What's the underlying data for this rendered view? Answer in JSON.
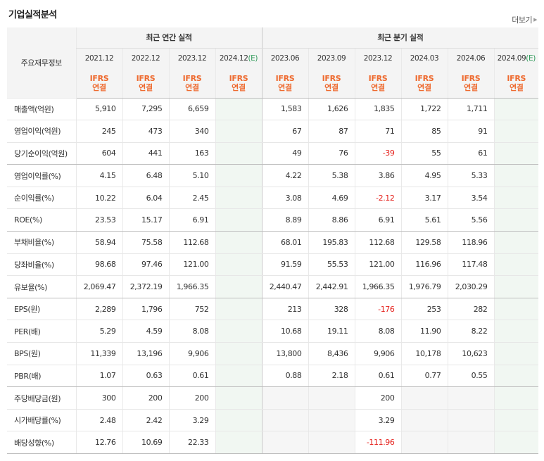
{
  "section_title": "기업실적분석",
  "more_label": "더보기",
  "more_icon": "triangle-right-icon",
  "colors": {
    "ifrs": "#ee6a2f",
    "negative": "#e5201b",
    "estimate": "#2f9a59",
    "estimate_bg": "#f1f7f2",
    "header_bg": "#f4f4f4"
  },
  "header": {
    "row_label": "주요재무정보",
    "annual_group": "최근 연간 실적",
    "quarter_group": "최근 분기 실적",
    "annual_periods": [
      {
        "period": "2021.12",
        "est": ""
      },
      {
        "period": "2022.12",
        "est": ""
      },
      {
        "period": "2023.12",
        "est": ""
      },
      {
        "period": "2024.12",
        "est": "(E)"
      }
    ],
    "quarter_periods": [
      {
        "period": "2023.06",
        "est": ""
      },
      {
        "period": "2023.09",
        "est": ""
      },
      {
        "period": "2023.12",
        "est": ""
      },
      {
        "period": "2024.03",
        "est": ""
      },
      {
        "period": "2024.06",
        "est": ""
      },
      {
        "period": "2024.09",
        "est": "(E)"
      }
    ],
    "ifrs_line1": "IFRS",
    "ifrs_line2": "연결"
  },
  "rows": [
    {
      "label": "매출액(억원)",
      "values": [
        "5,910",
        "7,295",
        "6,659",
        "",
        "1,583",
        "1,626",
        "1,835",
        "1,722",
        "1,711",
        ""
      ]
    },
    {
      "label": "영업이익(억원)",
      "values": [
        "245",
        "473",
        "340",
        "",
        "67",
        "87",
        "71",
        "85",
        "91",
        ""
      ]
    },
    {
      "label": "당기순이익(억원)",
      "values": [
        "604",
        "441",
        "163",
        "",
        "49",
        "76",
        "-39",
        "55",
        "61",
        ""
      ],
      "group_end": true
    },
    {
      "label": "영업이익률(%)",
      "values": [
        "4.15",
        "6.48",
        "5.10",
        "",
        "4.22",
        "5.38",
        "3.86",
        "4.95",
        "5.33",
        ""
      ]
    },
    {
      "label": "순이익률(%)",
      "values": [
        "10.22",
        "6.04",
        "2.45",
        "",
        "3.08",
        "4.69",
        "-2.12",
        "3.17",
        "3.54",
        ""
      ]
    },
    {
      "label": "ROE(%)",
      "values": [
        "23.53",
        "15.17",
        "6.91",
        "",
        "8.89",
        "8.86",
        "6.91",
        "5.61",
        "5.56",
        ""
      ],
      "group_end": true
    },
    {
      "label": "부채비율(%)",
      "values": [
        "58.94",
        "75.58",
        "112.68",
        "",
        "68.01",
        "195.83",
        "112.68",
        "129.58",
        "118.96",
        ""
      ]
    },
    {
      "label": "당좌비율(%)",
      "values": [
        "98.68",
        "97.46",
        "121.00",
        "",
        "91.59",
        "55.53",
        "121.00",
        "116.96",
        "117.48",
        ""
      ]
    },
    {
      "label": "유보율(%)",
      "values": [
        "2,069.47",
        "2,372.19",
        "1,966.35",
        "",
        "2,440.47",
        "2,442.91",
        "1,966.35",
        "1,976.79",
        "2,030.29",
        ""
      ],
      "group_end": true
    },
    {
      "label": "EPS(원)",
      "values": [
        "2,289",
        "1,796",
        "752",
        "",
        "213",
        "328",
        "-176",
        "253",
        "282",
        ""
      ]
    },
    {
      "label": "PER(배)",
      "values": [
        "5.29",
        "4.59",
        "8.08",
        "",
        "10.68",
        "19.11",
        "8.08",
        "11.90",
        "8.22",
        ""
      ]
    },
    {
      "label": "BPS(원)",
      "values": [
        "11,339",
        "13,196",
        "9,906",
        "",
        "13,800",
        "8,436",
        "9,906",
        "10,178",
        "10,623",
        ""
      ]
    },
    {
      "label": "PBR(배)",
      "values": [
        "1.07",
        "0.63",
        "0.61",
        "",
        "0.88",
        "2.18",
        "0.61",
        "0.77",
        "0.55",
        ""
      ],
      "group_end": true
    },
    {
      "label": "주당배당금(원)",
      "values": [
        "300",
        "200",
        "200",
        "",
        "",
        "",
        "200",
        "",
        "",
        ""
      ]
    },
    {
      "label": "시가배당률(%)",
      "values": [
        "2.48",
        "2.42",
        "3.29",
        "",
        "",
        "",
        "3.29",
        "",
        "",
        ""
      ]
    },
    {
      "label": "배당성향(%)",
      "values": [
        "12.76",
        "10.69",
        "22.33",
        "",
        "",
        "",
        "-111.96",
        "",
        "",
        ""
      ]
    }
  ]
}
